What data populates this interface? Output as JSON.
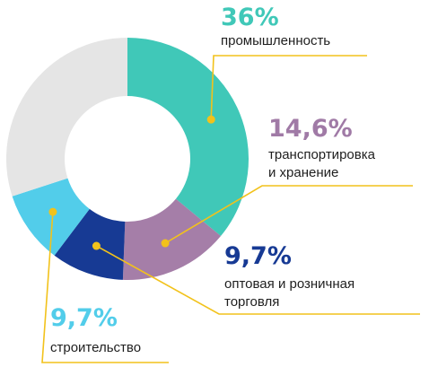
{
  "chart_data": {
    "type": "pie",
    "donut": true,
    "unit": "%",
    "categories": [
      "промышленность",
      "транспортировка и хранение",
      "оптовая и розничная торговля",
      "строительство",
      ""
    ],
    "values": [
      36,
      14.6,
      9.7,
      9.7,
      30
    ],
    "value_labels": [
      "36%",
      "14,6%",
      "9,7%",
      "9,7%",
      ""
    ],
    "label_lines": [
      [
        "промышленность"
      ],
      [
        "транспортировка",
        "и хранение"
      ],
      [
        "оптовая и розничная",
        "торговля"
      ],
      [
        "строительство"
      ]
    ],
    "colors": [
      "#40c8b8",
      "#a57ea8",
      "#173a94",
      "#52cdea",
      "#e5e5e5"
    ],
    "label_colors": [
      "#40c8b8",
      "#a07aa6",
      "#173a94",
      "#52cdea"
    ],
    "leader_color": "#f2c21b"
  }
}
